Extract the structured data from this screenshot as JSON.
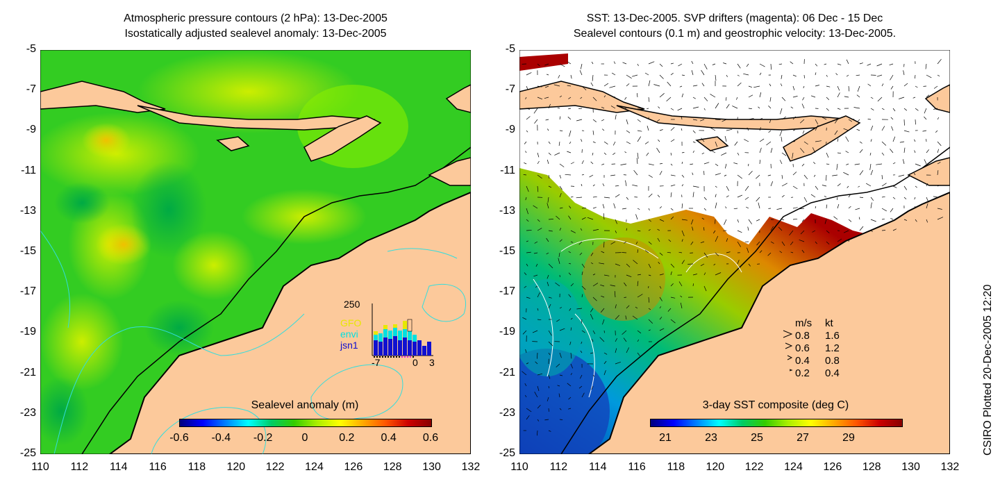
{
  "left_panel": {
    "title_line1": "Atmospheric pressure contours (2 hPa): 13-Dec-2005",
    "title_line2": "Isostatically adjusted sealevel anomaly: 13-Dec-2005",
    "colorbar_label": "Sealevel anomaly (m)",
    "colorbar_ticks": [
      "-0.6",
      "-0.4",
      "-0.2",
      "0",
      "0.2",
      "0.4",
      "0.6"
    ],
    "inset": {
      "ymax_label": "250",
      "x_ticks": [
        "-7",
        "0",
        "3"
      ],
      "legend": [
        {
          "name": "GFO",
          "color": "#e8e800"
        },
        {
          "name": "envi",
          "color": "#00e0e0"
        },
        {
          "name": "jsn1",
          "color": "#1010d0"
        }
      ]
    }
  },
  "right_panel": {
    "title_line1": "SST: 13-Dec-2005. SVP drifters (magenta): 06 Dec - 15 Dec",
    "title_line2": "Sealevel contours (0.1 m) and geostrophic velocity: 13-Dec-2005.",
    "colorbar_label": "3-day SST composite (deg C)",
    "colorbar_ticks": [
      "21",
      "23",
      "25",
      "27",
      "29"
    ],
    "velocity_legend": {
      "header_ms": "m/s",
      "header_kt": "kt",
      "rows": [
        {
          "ms": "0.8",
          "kt": "1.6"
        },
        {
          "ms": "0.6",
          "kt": "1.2"
        },
        {
          "ms": "0.4",
          "kt": "0.8"
        },
        {
          "ms": "0.2",
          "kt": "0.4"
        }
      ]
    }
  },
  "axes": {
    "y_ticks": [
      "-5",
      "-7",
      "-9",
      "-11",
      "-13",
      "-15",
      "-17",
      "-19",
      "-21",
      "-23",
      "-25"
    ],
    "x_ticks": [
      "110",
      "112",
      "114",
      "116",
      "118",
      "120",
      "122",
      "124",
      "126",
      "128",
      "130",
      "132"
    ]
  },
  "credit": "CSIRO Plotted 20-Dec-2005 12:20",
  "colors": {
    "land": "#fcc99b",
    "sla_low": "#00bb33",
    "sla_mid": "#88ee00",
    "sla_high": "#eeee00",
    "sst_hot": "#aa0000"
  }
}
